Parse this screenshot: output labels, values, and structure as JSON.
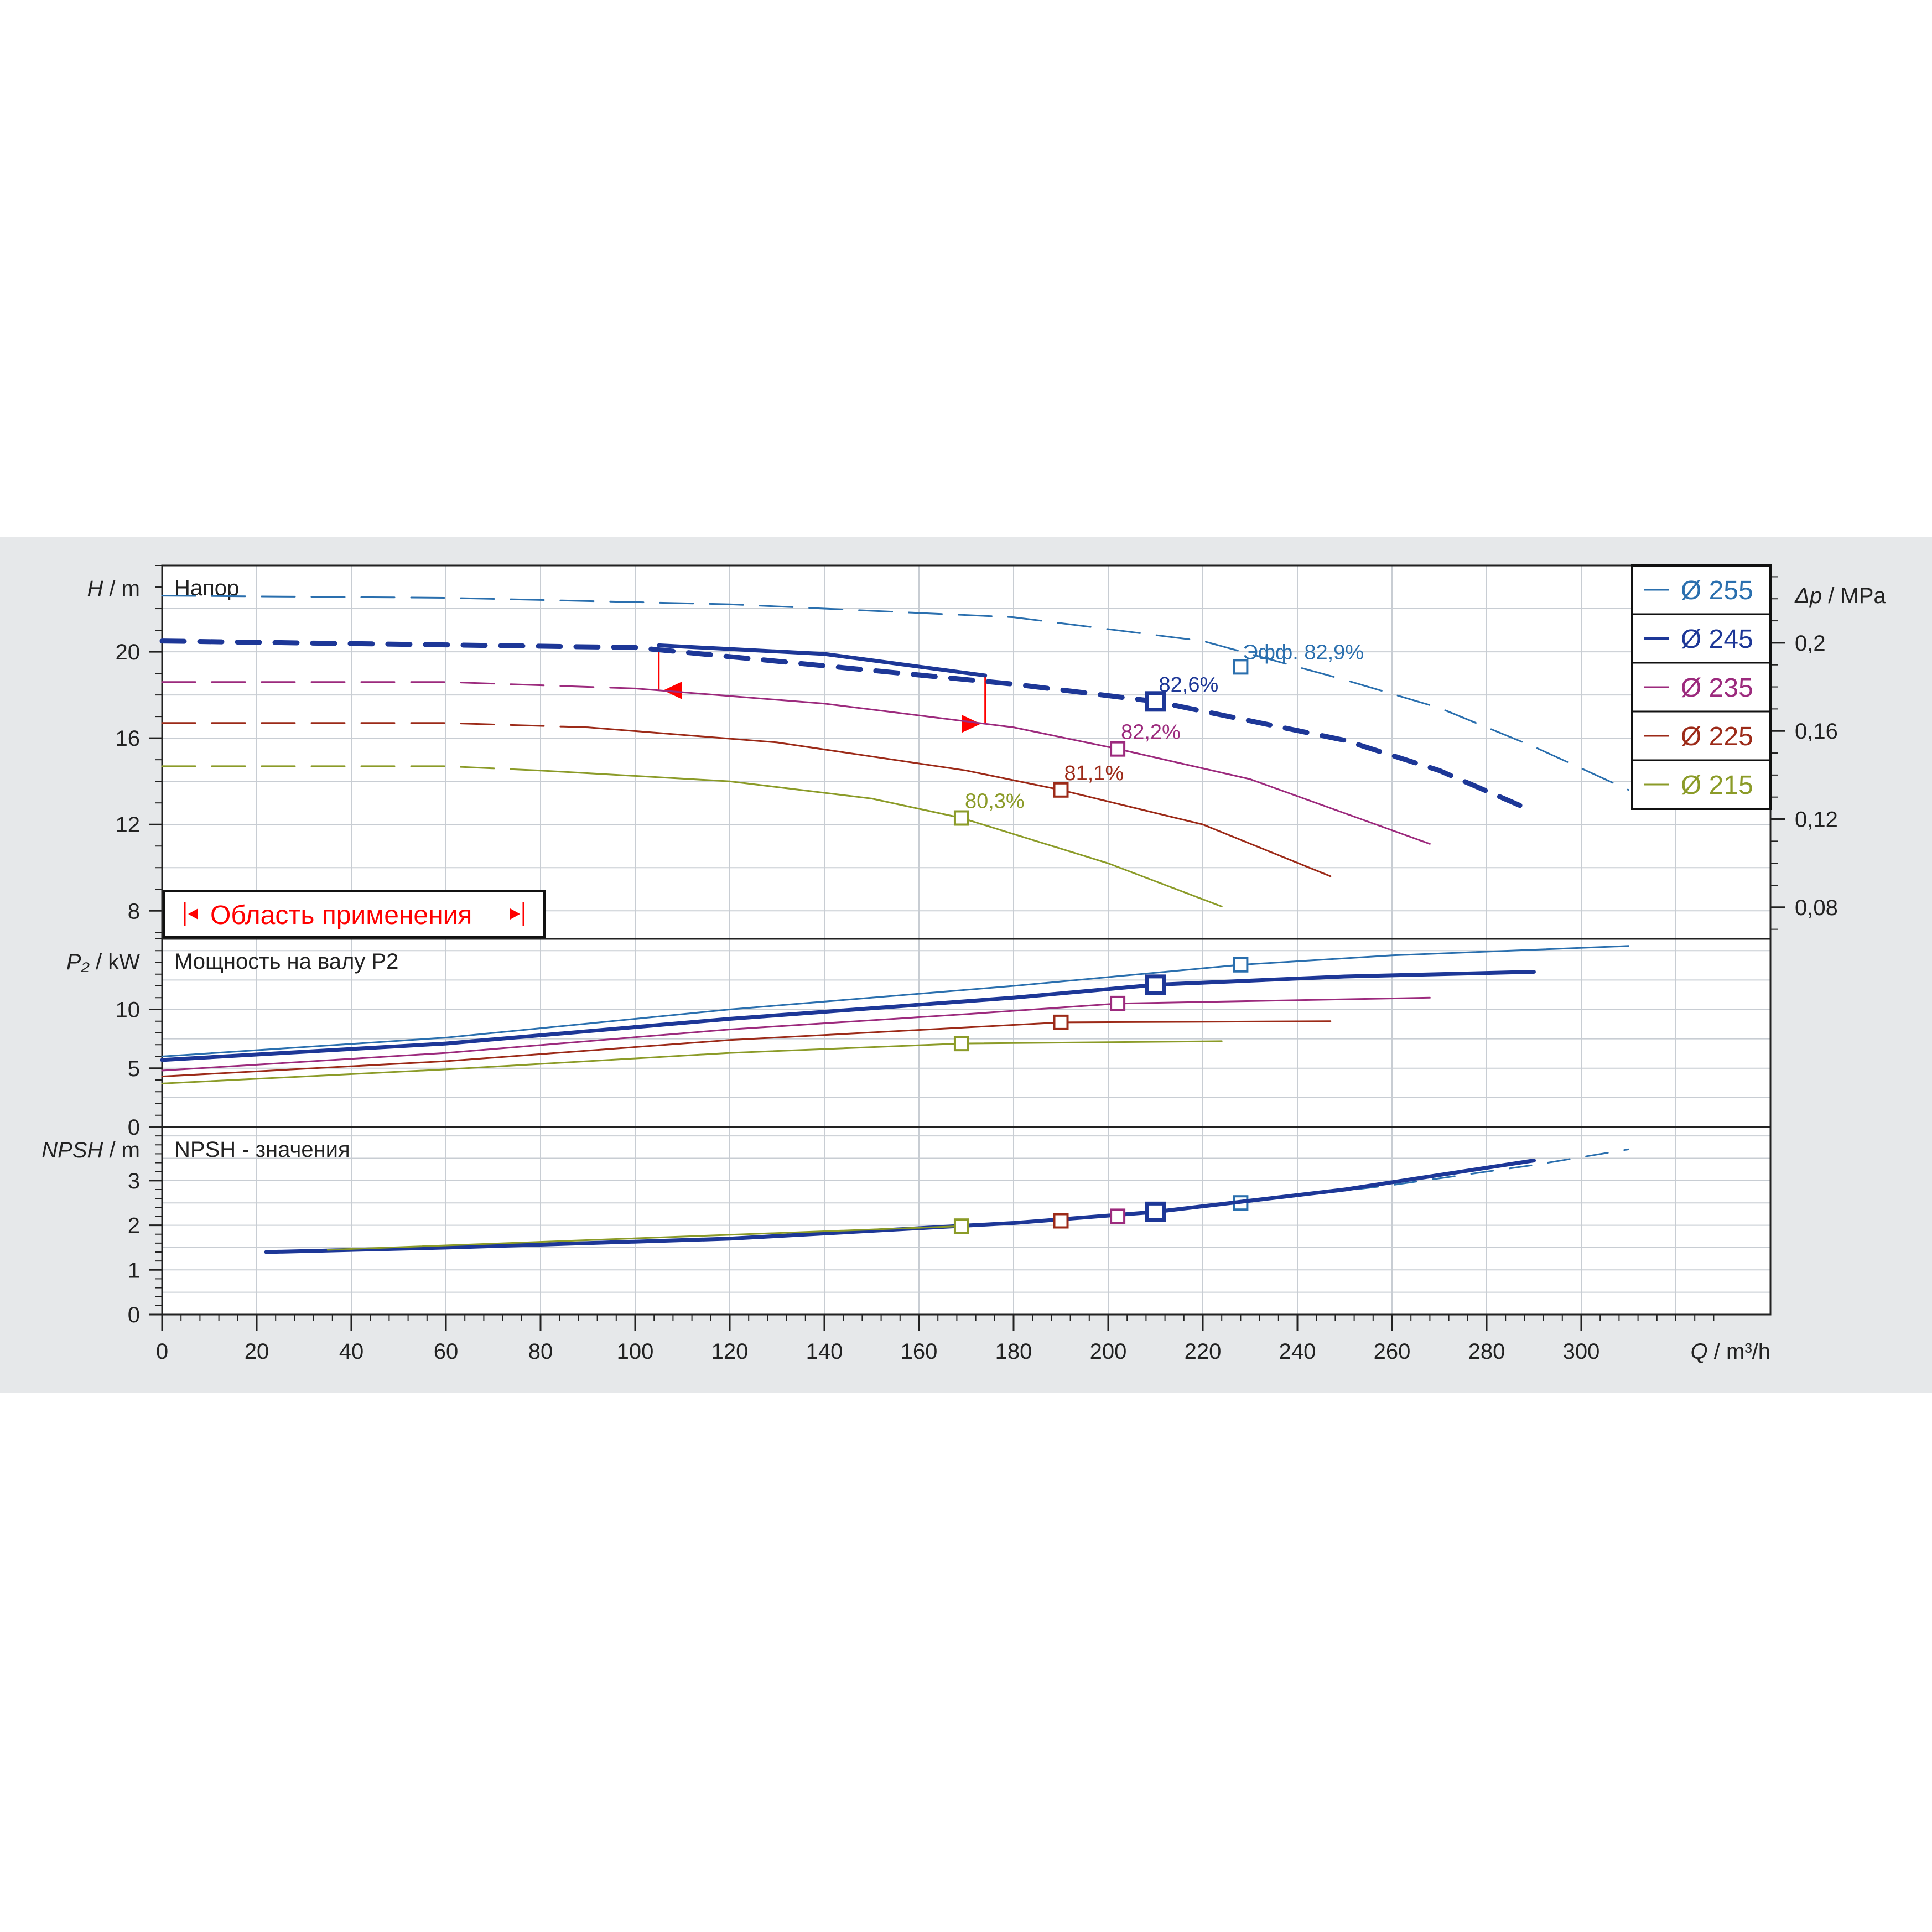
{
  "chart_data": {
    "type": "line",
    "x_axis": {
      "label_var": "Q",
      "label_unit": "m³/h",
      "min": 0,
      "max": 340,
      "ticks": [
        0,
        20,
        40,
        60,
        80,
        100,
        120,
        140,
        160,
        180,
        200,
        220,
        240,
        260,
        280,
        300
      ]
    },
    "panels": [
      {
        "id": "head",
        "title": "Напор",
        "y_var": "H",
        "y_unit": "m",
        "y_min": 6.7,
        "y_max": 24,
        "y_ticks": [
          8,
          12,
          16,
          20
        ],
        "right_axis": {
          "label_var": "Δp",
          "label_unit": "MPa",
          "ticks": [
            "0,08",
            "0,12",
            "0,16",
            "0,2"
          ],
          "tick_values": [
            0.08,
            0.12,
            0.16,
            0.2
          ]
        }
      },
      {
        "id": "power",
        "title": "Мощность на валу P2",
        "y_var": "P₂",
        "y_unit": "kW",
        "y_min": 0,
        "y_max": 16,
        "y_ticks": [
          0,
          5,
          10
        ]
      },
      {
        "id": "npsh",
        "title": "NPSH - значения",
        "y_var": "NPSH",
        "y_unit": "m",
        "y_min": 0,
        "y_max": 4.2,
        "y_ticks": [
          0,
          1,
          2,
          3
        ]
      }
    ],
    "series": [
      {
        "name": "Ø 255",
        "color": "#2a6fae",
        "head": {
          "dashed": [
            [
              0,
              22.6
            ],
            [
              60,
              22.5
            ],
            [
              120,
              22.2
            ],
            [
              180,
              21.6
            ],
            [
              220,
              20.5
            ],
            [
              250,
              18.7
            ],
            [
              270,
              17.4
            ],
            [
              290,
              15.6
            ],
            [
              310,
              13.6
            ]
          ],
          "solid": []
        },
        "head_bep": {
          "q": 228,
          "h": 19.3,
          "label": "Эфф.  82,9%"
        },
        "power": [
          [
            0,
            6.0
          ],
          [
            60,
            7.6
          ],
          [
            120,
            10.0
          ],
          [
            180,
            12.0
          ],
          [
            228,
            13.8
          ],
          [
            260,
            14.6
          ],
          [
            310,
            15.4
          ]
        ],
        "power_bep": {
          "q": 228,
          "p": 13.8
        },
        "npsh": [
          [
            228,
            2.5
          ],
          [
            260,
            2.9
          ],
          [
            290,
            3.35
          ],
          [
            310,
            3.7
          ]
        ]
      },
      {
        "name": "Ø 245",
        "color": "#1d3797",
        "head": {
          "dashed": [
            [
              0,
              20.5
            ],
            [
              100,
              20.2
            ],
            [
              180,
              18.5
            ],
            [
              210,
              17.7
            ],
            [
              250,
              15.9
            ],
            [
              270,
              14.5
            ],
            [
              290,
              12.6
            ]
          ],
          "solid": [
            [
              105,
              20.3
            ],
            [
              140,
              19.9
            ],
            [
              174,
              18.9
            ]
          ]
        },
        "head_bep": {
          "q": 210,
          "h": 17.7,
          "label": "82,6%"
        },
        "power": [
          [
            0,
            5.7
          ],
          [
            60,
            7.1
          ],
          [
            120,
            9.2
          ],
          [
            180,
            11.0
          ],
          [
            210,
            12.1
          ],
          [
            250,
            12.8
          ],
          [
            290,
            13.2
          ]
        ],
        "power_bep": {
          "q": 210,
          "p": 12.1
        },
        "npsh": [
          [
            22,
            1.4
          ],
          [
            60,
            1.5
          ],
          [
            120,
            1.7
          ],
          [
            180,
            2.05
          ],
          [
            210,
            2.3
          ],
          [
            250,
            2.8
          ],
          [
            290,
            3.45
          ]
        ]
      },
      {
        "name": "Ø 235",
        "color": "#9c2a7d",
        "head": {
          "dashed": [
            [
              0,
              18.6
            ],
            [
              60,
              18.6
            ],
            [
              100,
              18.3
            ]
          ],
          "solid": [
            [
              100,
              18.3
            ],
            [
              140,
              17.6
            ],
            [
              180,
              16.5
            ],
            [
              202,
              15.5
            ],
            [
              230,
              14.1
            ],
            [
              268,
              11.1
            ]
          ]
        },
        "head_bep": {
          "q": 202,
          "h": 15.5,
          "label": "82,2%"
        },
        "power": [
          [
            0,
            4.8
          ],
          [
            60,
            6.3
          ],
          [
            120,
            8.3
          ],
          [
            170,
            9.6
          ],
          [
            202,
            10.5
          ],
          [
            268,
            11.0
          ]
        ],
        "power_bep": {
          "q": 202,
          "p": 10.5
        },
        "npsh": [
          [
            202,
            2.2
          ]
        ]
      },
      {
        "name": "Ø 225",
        "color": "#9c2a18",
        "head": {
          "dashed": [
            [
              0,
              16.7
            ],
            [
              60,
              16.7
            ],
            [
              90,
              16.5
            ]
          ],
          "solid": [
            [
              90,
              16.5
            ],
            [
              130,
              15.8
            ],
            [
              170,
              14.5
            ],
            [
              190,
              13.6
            ],
            [
              220,
              12.0
            ],
            [
              247,
              9.6
            ]
          ]
        },
        "head_bep": {
          "q": 190,
          "h": 13.6,
          "label": "81,1%"
        },
        "power": [
          [
            0,
            4.3
          ],
          [
            60,
            5.6
          ],
          [
            120,
            7.4
          ],
          [
            190,
            8.9
          ],
          [
            247,
            9.0
          ]
        ],
        "power_bep": {
          "q": 190,
          "p": 8.9
        },
        "npsh": [
          [
            190,
            2.1
          ]
        ]
      },
      {
        "name": "Ø 215",
        "color": "#8b9b28",
        "head": {
          "dashed": [
            [
              0,
              14.7
            ],
            [
              60,
              14.7
            ],
            [
              80,
              14.5
            ]
          ],
          "solid": [
            [
              80,
              14.5
            ],
            [
              120,
              14.0
            ],
            [
              150,
              13.2
            ],
            [
              169,
              12.3
            ],
            [
              200,
              10.2
            ],
            [
              224,
              8.2
            ]
          ]
        },
        "head_bep": {
          "q": 169,
          "h": 12.3,
          "label": "80,3%"
        },
        "power": [
          [
            0,
            3.7
          ],
          [
            60,
            4.9
          ],
          [
            120,
            6.3
          ],
          [
            169,
            7.1
          ],
          [
            224,
            7.3
          ]
        ],
        "power_bep": {
          "q": 169,
          "p": 7.1
        },
        "npsh": [
          [
            35,
            1.45
          ],
          [
            169,
            1.98
          ]
        ]
      }
    ],
    "application_range": {
      "label": "Область применения",
      "color": "#ff0000",
      "q_min": 105,
      "q_max": 174
    }
  }
}
